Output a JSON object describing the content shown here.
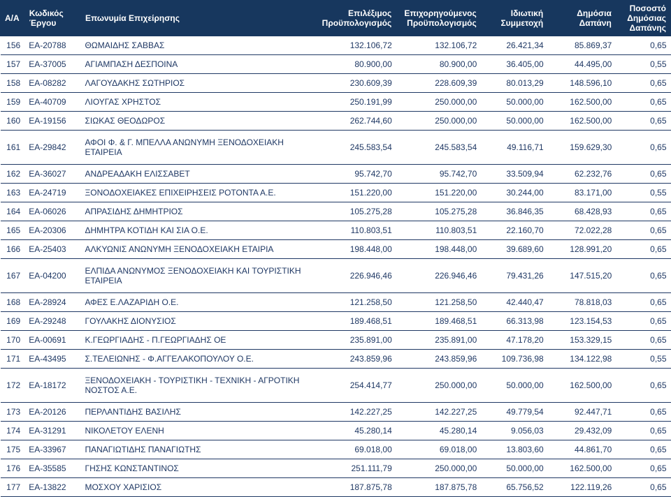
{
  "header": {
    "idx": "Α/Α",
    "code": "Κωδικός Έργου",
    "name": "Επωνυμία Επιχείρησης",
    "budget1": "Επιλέξιμος Προϋπολογισμός",
    "budget2": "Επιχορηγούμενος Προϋπολογισμός",
    "private": "Ιδιωτική Συμμετοχή",
    "public": "Δημόσια Δαπάνη",
    "percent": "Ποσοστό Δημόσιας Δαπάνης"
  },
  "colors": {
    "header_bg": "#17375e",
    "header_fg": "#ffffff",
    "body_fg": "#1f3864",
    "row_border": "#1f3864",
    "page_bg": "#ffffff"
  },
  "font": {
    "family": "Arial",
    "header_size_pt": 9,
    "body_size_pt": 9,
    "header_weight": "bold"
  },
  "rows": [
    {
      "idx": "156",
      "code": "ΕΑ-20788",
      "name": "ΘΩΜΑΙΔΗΣ ΣΑΒΒΑΣ",
      "b1": "132.106,72",
      "b2": "132.106,72",
      "priv": "26.421,34",
      "pub": "85.869,37",
      "pct": "0,65"
    },
    {
      "idx": "157",
      "code": "ΕΑ-37005",
      "name": "ΑΓΙΑΜΠΑΣΗ ΔΕΣΠΟΙΝΑ",
      "b1": "80.900,00",
      "b2": "80.900,00",
      "priv": "36.405,00",
      "pub": "44.495,00",
      "pct": "0,55"
    },
    {
      "idx": "158",
      "code": "ΕΑ-08282",
      "name": "ΛΑΓΟΥΔΑΚΗΣ ΣΩΤΗΡΙΟΣ",
      "b1": "230.609,39",
      "b2": "228.609,39",
      "priv": "80.013,29",
      "pub": "148.596,10",
      "pct": "0,65"
    },
    {
      "idx": "159",
      "code": "ΕΑ-40709",
      "name": "ΛΙΟΥΓΑΣ ΧΡΗΣΤΟΣ",
      "b1": "250.191,99",
      "b2": "250.000,00",
      "priv": "50.000,00",
      "pub": "162.500,00",
      "pct": "0,65"
    },
    {
      "idx": "160",
      "code": "ΕΑ-19156",
      "name": "ΣΙΩΚΑΣ ΘΕΟΔΩΡΟΣ",
      "b1": "262.744,60",
      "b2": "250.000,00",
      "priv": "50.000,00",
      "pub": "162.500,00",
      "pct": "0,65"
    },
    {
      "idx": "161",
      "code": "ΕΑ-29842",
      "name": "ΑΦΟΙ Φ. & Γ. ΜΠΕΛΛΑ ΑΝΩΝΥΜΗ ΞΕΝΟΔΟΧΕΙΑΚΗ ΕΤΑΙΡΕΙΑ",
      "b1": "245.583,54",
      "b2": "245.583,54",
      "priv": "49.116,71",
      "pub": "159.629,30",
      "pct": "0,65",
      "tall": true
    },
    {
      "idx": "162",
      "code": "ΕΑ-36027",
      "name": "ΑΝΔΡΕΑΔΑΚΗ ΕΛΙΣΣΑΒΕΤ",
      "b1": "95.742,70",
      "b2": "95.742,70",
      "priv": "33.509,94",
      "pub": "62.232,76",
      "pct": "0,65"
    },
    {
      "idx": "163",
      "code": "ΕΑ-24719",
      "name": "ΞΟΝΟΔΟΧΕΙΑΚΕΣ ΕΠΙΧΕΙΡΗΣΕΙΣ ΡΟΤΟΝΤΑ Α.Ε.",
      "b1": "151.220,00",
      "b2": "151.220,00",
      "priv": "30.244,00",
      "pub": "83.171,00",
      "pct": "0,55"
    },
    {
      "idx": "164",
      "code": "ΕΑ-06026",
      "name": "ΑΠΡΑΣΙΔΗΣ ΔΗΜΗΤΡΙΟΣ",
      "b1": "105.275,28",
      "b2": "105.275,28",
      "priv": "36.846,35",
      "pub": "68.428,93",
      "pct": "0,65"
    },
    {
      "idx": "165",
      "code": "ΕΑ-20306",
      "name": "ΔΗΜΗΤΡΑ ΚΟΤΙΔΗ ΚΑΙ ΣΙΑ Ο.Ε.",
      "b1": "110.803,51",
      "b2": "110.803,51",
      "priv": "22.160,70",
      "pub": "72.022,28",
      "pct": "0,65"
    },
    {
      "idx": "166",
      "code": "ΕΑ-25403",
      "name": "ΑΛΚΥΩΝΙΣ ΑΝΩΝΥΜΗ ΞΕΝΟΔΟΧΕΙΑΚΗ ΕΤΑΙΡΙΑ",
      "b1": "198.448,00",
      "b2": "198.448,00",
      "priv": "39.689,60",
      "pub": "128.991,20",
      "pct": "0,65"
    },
    {
      "idx": "167",
      "code": "ΕΑ-04200",
      "name": "ΕΛΠΙΔΑ ΑΝΩΝΥΜΟΣ ΞΕΝΟΔΟΧΕΙΑΚΗ ΚΑΙ ΤΟΥΡΙΣΤΙΚΗ ΕΤΑΙΡΕΙΑ",
      "b1": "226.946,46",
      "b2": "226.946,46",
      "priv": "79.431,26",
      "pub": "147.515,20",
      "pct": "0,65",
      "tall": true
    },
    {
      "idx": "168",
      "code": "ΕΑ-28924",
      "name": "ΑΦΕΣ Ε.ΛΑΖΑΡΙΔΗ Ο.Ε.",
      "b1": "121.258,50",
      "b2": "121.258,50",
      "priv": "42.440,47",
      "pub": "78.818,03",
      "pct": "0,65"
    },
    {
      "idx": "169",
      "code": "ΕΑ-29248",
      "name": "ΓΟΥΛΑΚΗΣ ΔΙΟΝΥΣΙΟΣ",
      "b1": "189.468,51",
      "b2": "189.468,51",
      "priv": "66.313,98",
      "pub": "123.154,53",
      "pct": "0,65"
    },
    {
      "idx": "170",
      "code": "ΕΑ-00691",
      "name": "Κ.ΓΕΩΡΓΙΑΔΗΣ - Π.ΓΕΩΡΓΙΑΔΗΣ ΟΕ",
      "b1": "235.891,00",
      "b2": "235.891,00",
      "priv": "47.178,20",
      "pub": "153.329,15",
      "pct": "0,65"
    },
    {
      "idx": "171",
      "code": "ΕΑ-43495",
      "name": "Σ.ΤΕΛΕΙΩΝΗΣ - Φ.ΑΓΓΕΛΑΚΟΠΟΥΛΟΥ Ο.Ε.",
      "b1": "243.859,96",
      "b2": "243.859,96",
      "priv": "109.736,98",
      "pub": "134.122,98",
      "pct": "0,55"
    },
    {
      "idx": "172",
      "code": "ΕΑ-18172",
      "name": "ΞΕΝΟΔΟΧΕΙΑΚΗ - ΤΟΥΡΙΣΤΙΚΗ - ΤΕΧΝΙΚΗ - ΑΓΡΟΤΙΚΗ ΝΟΣΤΟΣ Α.Ε.",
      "b1": "254.414,77",
      "b2": "250.000,00",
      "priv": "50.000,00",
      "pub": "162.500,00",
      "pct": "0,65",
      "tall": true
    },
    {
      "idx": "173",
      "code": "ΕΑ-20126",
      "name": "ΠΕΡΛΑΝΤΙΔΗΣ ΒΑΣΙΛΗΣ",
      "b1": "142.227,25",
      "b2": "142.227,25",
      "priv": "49.779,54",
      "pub": "92.447,71",
      "pct": "0,65"
    },
    {
      "idx": "174",
      "code": "ΕΑ-31291",
      "name": "ΝΙΚΟΛΕΤΟΥ ΕΛΕΝΗ",
      "b1": "45.280,14",
      "b2": "45.280,14",
      "priv": "9.056,03",
      "pub": "29.432,09",
      "pct": "0,65"
    },
    {
      "idx": "175",
      "code": "ΕΑ-33967",
      "name": "ΠΑΝΑΓΙΩΤΙΔΗΣ ΠΑΝΑΓΙΩΤΗΣ",
      "b1": "69.018,00",
      "b2": "69.018,00",
      "priv": "13.803,60",
      "pub": "44.861,70",
      "pct": "0,65"
    },
    {
      "idx": "176",
      "code": "ΕΑ-35585",
      "name": "ΓΗΣΗΣ ΚΩΝΣΤΑΝΤΙΝΟΣ",
      "b1": "251.111,79",
      "b2": "250.000,00",
      "priv": "50.000,00",
      "pub": "162.500,00",
      "pct": "0,65"
    },
    {
      "idx": "177",
      "code": "ΕΑ-13822",
      "name": "ΜΟΣΧΟΥ ΧΑΡΙΣΙΟΣ",
      "b1": "187.875,78",
      "b2": "187.875,78",
      "priv": "65.756,52",
      "pub": "122.119,26",
      "pct": "0,65"
    }
  ]
}
